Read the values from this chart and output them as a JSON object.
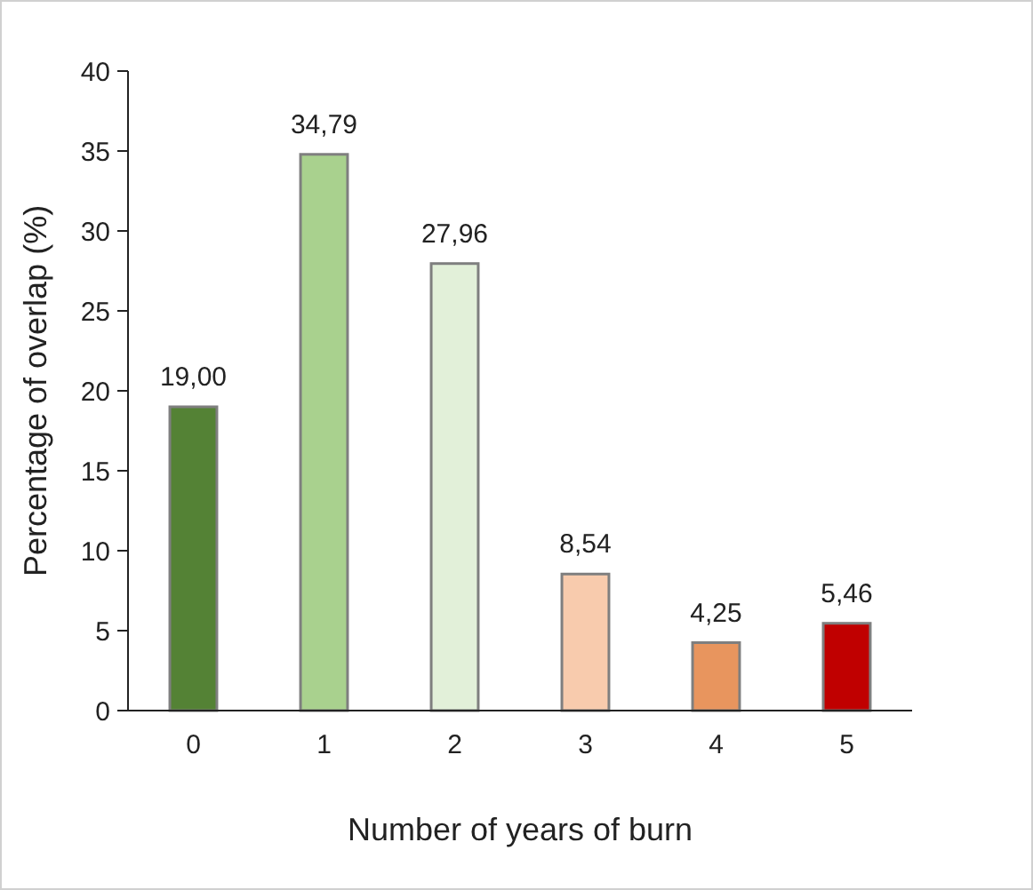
{
  "chart_data": {
    "type": "bar",
    "xlabel": "Number of years of burn",
    "ylabel": "Percentage of overlap (%)",
    "categories": [
      "0",
      "1",
      "2",
      "3",
      "4",
      "5"
    ],
    "values": [
      19.0,
      34.79,
      27.96,
      8.54,
      4.25,
      5.46
    ],
    "value_labels": [
      "19,00",
      "34,79",
      "27,96",
      "8,54",
      "4,25",
      "5,46"
    ],
    "colors": [
      "#548235",
      "#a9d18e",
      "#e2f0d9",
      "#f8cbad",
      "#e8955e",
      "#c00000"
    ],
    "ylim": [
      0,
      40
    ],
    "yticks": [
      0,
      5,
      10,
      15,
      20,
      25,
      30,
      35,
      40
    ],
    "grid": false
  }
}
